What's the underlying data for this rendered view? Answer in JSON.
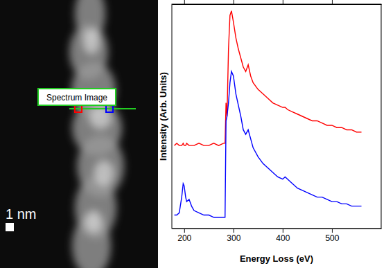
{
  "chart_data": {
    "type": "line",
    "x_label": "Energy Loss (eV)",
    "y_label": "Intensity (Arb. Units)",
    "xlim": [
      175,
      600
    ],
    "ylim": [
      0,
      1
    ],
    "xticks": [
      200,
      300,
      400,
      500
    ],
    "tick_labels": "x",
    "x": [
      180,
      185,
      190,
      195,
      198,
      200,
      203,
      205,
      210,
      215,
      220,
      230,
      240,
      250,
      260,
      270,
      280,
      283,
      285,
      287,
      290,
      293,
      296,
      300,
      305,
      310,
      315,
      320,
      325,
      330,
      335,
      340,
      350,
      360,
      370,
      380,
      390,
      400,
      405,
      410,
      420,
      430,
      440,
      450,
      460,
      470,
      480,
      490,
      500,
      510,
      520,
      530,
      540,
      550,
      560
    ],
    "series": [
      {
        "color": "#ff0000",
        "values": [
          0.37,
          0.38,
          0.37,
          0.37,
          0.38,
          0.37,
          0.37,
          0.38,
          0.37,
          0.37,
          0.37,
          0.38,
          0.37,
          0.37,
          0.38,
          0.37,
          0.38,
          0.38,
          0.56,
          0.5,
          0.8,
          0.95,
          0.97,
          0.92,
          0.85,
          0.8,
          0.76,
          0.72,
          0.7,
          0.73,
          0.68,
          0.65,
          0.62,
          0.6,
          0.58,
          0.56,
          0.55,
          0.54,
          0.54,
          0.53,
          0.52,
          0.51,
          0.5,
          0.49,
          0.48,
          0.48,
          0.47,
          0.46,
          0.46,
          0.45,
          0.45,
          0.44,
          0.44,
          0.43,
          0.43
        ]
      },
      {
        "color": "#0000ff",
        "values": [
          0.06,
          0.06,
          0.07,
          0.14,
          0.2,
          0.19,
          0.14,
          0.12,
          0.13,
          0.1,
          0.08,
          0.07,
          0.06,
          0.06,
          0.05,
          0.05,
          0.05,
          0.05,
          0.48,
          0.5,
          0.56,
          0.65,
          0.7,
          0.68,
          0.6,
          0.55,
          0.5,
          0.44,
          0.42,
          0.44,
          0.4,
          0.36,
          0.32,
          0.29,
          0.27,
          0.25,
          0.23,
          0.22,
          0.23,
          0.22,
          0.2,
          0.18,
          0.17,
          0.16,
          0.15,
          0.14,
          0.14,
          0.13,
          0.12,
          0.12,
          0.11,
          0.11,
          0.1,
          0.1,
          0.1
        ]
      }
    ]
  },
  "image": {
    "label": "Spectrum Image",
    "scale_bar": "1 nm"
  }
}
